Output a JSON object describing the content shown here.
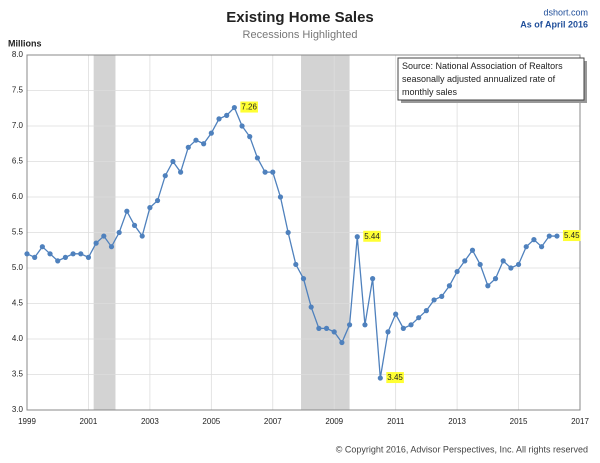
{
  "chart_data": {
    "type": "line",
    "title": "Existing Home Sales",
    "subtitle": "Recessions Highlighted",
    "source_site": "dshort.com",
    "as_of": "As of April 2016",
    "y_label": "Millions",
    "note": "Source: National Association of Realtors seasonally adjusted annualized rate of monthly sales",
    "copyright": "© Copyright 2016, Advisor Perspectives, Inc. All rights reserved",
    "xlim": [
      1999,
      2017
    ],
    "xticks": [
      1999,
      2001,
      2003,
      2005,
      2007,
      2009,
      2011,
      2013,
      2015,
      2017
    ],
    "ylim": [
      3,
      8
    ],
    "yticks": [
      {
        "value": 3,
        "label": "3.0"
      },
      3.5,
      {
        "value": 4,
        "label": "4.0"
      },
      4.5,
      {
        "value": 5,
        "label": "5.0"
      },
      5.5,
      {
        "value": 6,
        "label": "6.0"
      },
      6.5,
      {
        "value": 7,
        "label": "7.0"
      },
      7.5,
      {
        "value": 8,
        "label": "8.0"
      }
    ],
    "grid": true,
    "recessions": [
      [
        2001.17,
        2001.88
      ],
      [
        2007.92,
        2009.5
      ]
    ],
    "x": [
      1999,
      1999.25,
      1999.5,
      1999.75,
      2000,
      2000.25,
      2000.5,
      2000.75,
      2001,
      2001.25,
      2001.5,
      2001.75,
      2002,
      2002.25,
      2002.5,
      2002.75,
      2003,
      2003.25,
      2003.5,
      2003.75,
      2004,
      2004.25,
      2004.5,
      2004.75,
      2005,
      2005.25,
      2005.5,
      2005.75,
      2006,
      2006.25,
      2006.5,
      2006.75,
      2007,
      2007.25,
      2007.5,
      2007.75,
      2008,
      2008.25,
      2008.5,
      2008.75,
      2009,
      2009.25,
      2009.5,
      2009.75,
      2010,
      2010.25,
      2010.5,
      2010.75,
      2011,
      2011.25,
      2011.5,
      2011.75,
      2012,
      2012.25,
      2012.5,
      2012.75,
      2013,
      2013.25,
      2013.5,
      2013.75,
      2014,
      2014.25,
      2014.5,
      2014.75,
      2015,
      2015.25,
      2015.5,
      2015.75,
      2016,
      2016.25
    ],
    "series": [
      {
        "color": "#4f81bd",
        "values": [
          5.2,
          5.15,
          5.3,
          5.2,
          5.1,
          5.15,
          5.2,
          5.2,
          5.15,
          5.35,
          5.45,
          5.3,
          5.5,
          5.8,
          5.6,
          5.45,
          5.85,
          5.95,
          6.3,
          6.5,
          6.35,
          6.7,
          6.8,
          6.75,
          6.9,
          7.1,
          7.15,
          7.26,
          7.0,
          6.85,
          6.55,
          6.35,
          6.35,
          6.0,
          5.5,
          5.05,
          4.85,
          4.45,
          4.15,
          4.15,
          4.1,
          3.95,
          4.2,
          5.44,
          4.2,
          4.85,
          3.45,
          4.1,
          4.35,
          4.15,
          4.2,
          4.3,
          4.4,
          4.55,
          4.6,
          4.75,
          4.95,
          5.1,
          5.25,
          5.05,
          4.75,
          4.85,
          5.1,
          5.0,
          5.05,
          5.3,
          5.4,
          5.3,
          5.45,
          5.45
        ]
      }
    ],
    "highlight": [
      27,
      43,
      46,
      69
    ]
  }
}
